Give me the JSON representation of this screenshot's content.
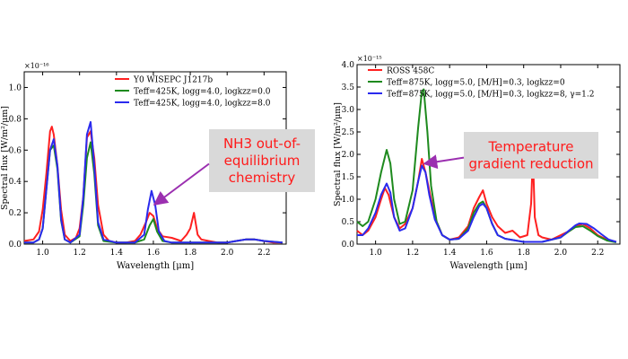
{
  "chart_data": [
    {
      "type": "line",
      "exponent": "×10⁻¹⁶",
      "xlabel": "Wavelength [μm]",
      "ylabel": "Spectral flux [W/m²/μm]",
      "xlim": [
        0.9,
        2.32
      ],
      "ylim": [
        0,
        1.1
      ],
      "xticks": [
        "1.0",
        "1.2",
        "1.4",
        "1.6",
        "1.8",
        "2.0",
        "2.2"
      ],
      "xtick_values": [
        1.0,
        1.2,
        1.4,
        1.6,
        1.8,
        2.0,
        2.2
      ],
      "yticks": [
        "0.0",
        "0.2",
        "0.4",
        "0.6",
        "0.8",
        "1.0"
      ],
      "ytick_values": [
        0.0,
        0.2,
        0.4,
        0.6,
        0.8,
        1.0
      ],
      "grid": false,
      "legend_position": "top-right",
      "series": [
        {
          "name": "Y0 WISEPC J1217b",
          "color": "#ff2020",
          "x": [
            0.9,
            0.95,
            0.98,
            1.0,
            1.02,
            1.04,
            1.05,
            1.06,
            1.08,
            1.1,
            1.12,
            1.15,
            1.18,
            1.2,
            1.22,
            1.24,
            1.26,
            1.28,
            1.3,
            1.33,
            1.36,
            1.4,
            1.45,
            1.5,
            1.53,
            1.56,
            1.58,
            1.6,
            1.62,
            1.65,
            1.7,
            1.75,
            1.78,
            1.8,
            1.82,
            1.84,
            1.86,
            1.9,
            1.95,
            2.0,
            2.05,
            2.1,
            2.15,
            2.2,
            2.25,
            2.3
          ],
          "y": [
            0.02,
            0.03,
            0.08,
            0.22,
            0.45,
            0.72,
            0.75,
            0.7,
            0.5,
            0.22,
            0.06,
            0.02,
            0.04,
            0.1,
            0.3,
            0.68,
            0.72,
            0.55,
            0.25,
            0.06,
            0.02,
            0.01,
            0.01,
            0.02,
            0.06,
            0.14,
            0.2,
            0.18,
            0.1,
            0.05,
            0.04,
            0.02,
            0.06,
            0.1,
            0.2,
            0.06,
            0.03,
            0.02,
            0.01,
            0.01,
            0.02,
            0.03,
            0.03,
            0.02,
            0.01,
            0.01
          ]
        },
        {
          "name": "Teff=425K, logg=4.0, logkzz=0.0",
          "color": "#1e8a1e",
          "x": [
            0.9,
            0.95,
            0.98,
            1.0,
            1.02,
            1.04,
            1.06,
            1.08,
            1.1,
            1.12,
            1.15,
            1.2,
            1.22,
            1.24,
            1.26,
            1.28,
            1.3,
            1.33,
            1.4,
            1.5,
            1.55,
            1.58,
            1.6,
            1.62,
            1.65,
            1.7,
            1.8,
            1.9,
            2.0,
            2.05,
            2.1,
            2.15,
            2.2,
            2.3
          ],
          "y": [
            0.01,
            0.01,
            0.03,
            0.1,
            0.35,
            0.6,
            0.63,
            0.48,
            0.15,
            0.03,
            0.01,
            0.05,
            0.25,
            0.55,
            0.65,
            0.45,
            0.12,
            0.02,
            0.01,
            0.01,
            0.03,
            0.12,
            0.16,
            0.08,
            0.02,
            0.01,
            0.01,
            0.01,
            0.01,
            0.02,
            0.03,
            0.03,
            0.02,
            0.01
          ]
        },
        {
          "name": "Teff=425K, logg=4.0, logkzz=8.0",
          "color": "#2a2aee",
          "x": [
            0.9,
            0.95,
            0.98,
            1.0,
            1.02,
            1.04,
            1.06,
            1.08,
            1.1,
            1.12,
            1.15,
            1.2,
            1.22,
            1.24,
            1.26,
            1.28,
            1.3,
            1.33,
            1.4,
            1.5,
            1.55,
            1.57,
            1.59,
            1.61,
            1.63,
            1.66,
            1.7,
            1.8,
            1.9,
            2.0,
            2.05,
            2.1,
            2.15,
            2.2,
            2.3
          ],
          "y": [
            0.01,
            0.01,
            0.03,
            0.1,
            0.35,
            0.6,
            0.67,
            0.5,
            0.16,
            0.03,
            0.01,
            0.06,
            0.3,
            0.7,
            0.78,
            0.5,
            0.14,
            0.03,
            0.01,
            0.01,
            0.06,
            0.22,
            0.34,
            0.25,
            0.08,
            0.02,
            0.01,
            0.01,
            0.01,
            0.01,
            0.02,
            0.03,
            0.03,
            0.02,
            0.01
          ]
        }
      ]
    },
    {
      "type": "line",
      "exponent": "×10⁻¹⁵",
      "xlabel": "Wavelength [μm]",
      "ylabel": "Spectral flux [W/m²/μm]",
      "xlim": [
        0.9,
        2.32
      ],
      "ylim": [
        0,
        4.0
      ],
      "xticks": [
        "1.0",
        "1.2",
        "1.4",
        "1.6",
        "1.8",
        "2.0",
        "2.2"
      ],
      "xtick_values": [
        1.0,
        1.2,
        1.4,
        1.6,
        1.8,
        2.0,
        2.2
      ],
      "yticks": [
        "0.0",
        "0.5",
        "1.0",
        "1.5",
        "2.0",
        "2.5",
        "3.0",
        "3.5",
        "4.0"
      ],
      "ytick_values": [
        0.0,
        0.5,
        1.0,
        1.5,
        2.0,
        2.5,
        3.0,
        3.5,
        4.0
      ],
      "grid": false,
      "legend_position": "top-right",
      "series": [
        {
          "name": "ROSS 458C",
          "color": "#ff2020",
          "x": [
            0.9,
            0.93,
            0.96,
            1.0,
            1.03,
            1.05,
            1.07,
            1.1,
            1.13,
            1.16,
            1.2,
            1.23,
            1.25,
            1.27,
            1.3,
            1.33,
            1.36,
            1.4,
            1.45,
            1.5,
            1.53,
            1.56,
            1.58,
            1.6,
            1.63,
            1.66,
            1.7,
            1.74,
            1.78,
            1.82,
            1.84,
            1.85,
            1.86,
            1.88,
            1.9,
            1.95,
            2.0,
            2.05,
            2.08,
            2.12,
            2.16,
            2.2,
            2.25,
            2.3
          ],
          "y": [
            0.3,
            0.2,
            0.3,
            0.6,
            1.0,
            1.25,
            1.1,
            0.6,
            0.35,
            0.45,
            0.8,
            1.4,
            1.9,
            1.6,
            1.0,
            0.5,
            0.2,
            0.1,
            0.15,
            0.4,
            0.8,
            1.05,
            1.2,
            0.9,
            0.6,
            0.4,
            0.25,
            0.3,
            0.15,
            0.2,
            0.9,
            2.0,
            0.6,
            0.2,
            0.15,
            0.1,
            0.2,
            0.3,
            0.4,
            0.45,
            0.35,
            0.2,
            0.1,
            0.05
          ]
        },
        {
          "name": "Teff=875K, logg=5.0, [M/H]=0.3, logkzz=0",
          "color": "#1e8a1e",
          "x": [
            0.9,
            0.93,
            0.96,
            1.0,
            1.03,
            1.06,
            1.08,
            1.1,
            1.13,
            1.16,
            1.2,
            1.23,
            1.25,
            1.26,
            1.28,
            1.3,
            1.33,
            1.36,
            1.4,
            1.45,
            1.5,
            1.53,
            1.56,
            1.58,
            1.6,
            1.63,
            1.66,
            1.7,
            1.8,
            1.9,
            2.0,
            2.05,
            2.08,
            2.12,
            2.16,
            2.2,
            2.25,
            2.3
          ],
          "y": [
            0.5,
            0.4,
            0.5,
            1.0,
            1.6,
            2.1,
            1.8,
            1.0,
            0.45,
            0.5,
            1.2,
            2.6,
            3.4,
            3.45,
            2.5,
            1.3,
            0.5,
            0.2,
            0.1,
            0.12,
            0.35,
            0.7,
            0.9,
            0.95,
            0.8,
            0.45,
            0.2,
            0.12,
            0.05,
            0.05,
            0.15,
            0.3,
            0.38,
            0.4,
            0.3,
            0.18,
            0.08,
            0.04
          ]
        },
        {
          "name": "Teff=875K, logg=5.0, [M/H]=0.3, logkzz=8, γ=1.2",
          "color": "#2a2aee",
          "x": [
            0.9,
            0.93,
            0.96,
            1.0,
            1.03,
            1.06,
            1.08,
            1.1,
            1.13,
            1.16,
            1.2,
            1.23,
            1.25,
            1.27,
            1.29,
            1.32,
            1.36,
            1.4,
            1.45,
            1.5,
            1.53,
            1.56,
            1.58,
            1.6,
            1.63,
            1.66,
            1.7,
            1.8,
            1.9,
            2.0,
            2.05,
            2.08,
            2.1,
            2.14,
            2.18,
            2.22,
            2.26,
            2.3
          ],
          "y": [
            0.2,
            0.2,
            0.35,
            0.7,
            1.1,
            1.35,
            1.15,
            0.6,
            0.3,
            0.35,
            0.8,
            1.4,
            1.75,
            1.6,
            1.1,
            0.55,
            0.2,
            0.1,
            0.12,
            0.3,
            0.6,
            0.85,
            0.9,
            0.8,
            0.45,
            0.2,
            0.12,
            0.05,
            0.05,
            0.15,
            0.32,
            0.42,
            0.46,
            0.45,
            0.35,
            0.22,
            0.1,
            0.05
          ]
        }
      ]
    }
  ],
  "callouts": [
    {
      "text_lines": [
        "NH3 out-of-",
        "equilibrium",
        "chemistry"
      ],
      "arrow_target": [
        1.6,
        0.26
      ]
    },
    {
      "text_lines": [
        "Temperature",
        "gradient reduction"
      ],
      "arrow_target": [
        1.26,
        1.8
      ]
    }
  ]
}
